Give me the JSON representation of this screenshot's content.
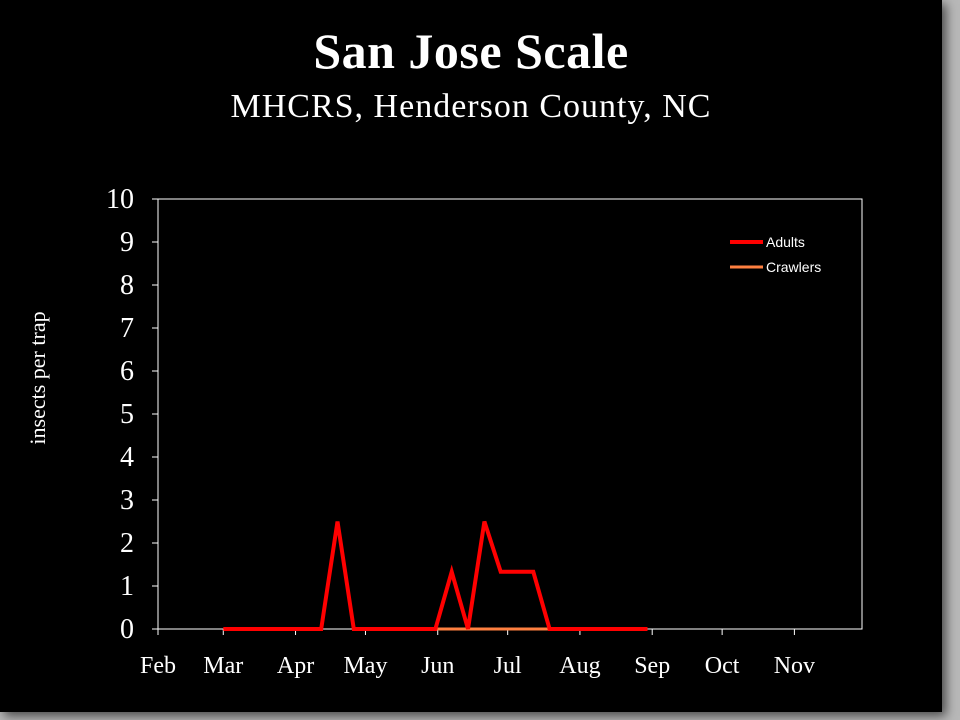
{
  "slide": {
    "title": "San Jose Scale",
    "subtitle": "MHCRS, Henderson County, NC"
  },
  "chart_data": {
    "type": "line",
    "title": "San Jose Scale",
    "subtitle": "MHCRS, Henderson County, NC",
    "xlabel": "",
    "ylabel": "insects per trap",
    "ylim": [
      0,
      10
    ],
    "yticks": [
      0,
      1,
      2,
      3,
      4,
      5,
      6,
      7,
      8,
      9,
      10
    ],
    "xticks": [
      "Feb",
      "Mar",
      "Apr",
      "May",
      "Jun",
      "Jul",
      "Aug",
      "Sep",
      "Oct",
      "Nov"
    ],
    "grid": false,
    "legend_position": "top-right",
    "colors": {
      "background": "#000000",
      "axis": "#ffffff",
      "adults": "#ff0000",
      "crawlers": "#ff8040"
    },
    "series": [
      {
        "name": "Adults",
        "color": "#ff0000",
        "points": [
          [
            "Mar 1",
            0
          ],
          [
            "Mar 15",
            0
          ],
          [
            "Mar 29",
            0
          ],
          [
            "Apr 12",
            0
          ],
          [
            "Apr 19",
            2.5
          ],
          [
            "Apr 26",
            0
          ],
          [
            "May 10",
            0
          ],
          [
            "May 24",
            0
          ],
          [
            "May 31",
            0
          ],
          [
            "Jun 7",
            1.33
          ],
          [
            "Jun 14",
            0
          ],
          [
            "Jun 21",
            2.5
          ],
          [
            "Jun 28",
            1.33
          ],
          [
            "Jul 5",
            1.33
          ],
          [
            "Jul 12",
            1.33
          ],
          [
            "Jul 19",
            0
          ],
          [
            "Aug 2",
            0
          ],
          [
            "Aug 16",
            0
          ],
          [
            "Aug 30",
            0
          ]
        ]
      },
      {
        "name": "Crawlers",
        "color": "#ff8040",
        "points": [
          [
            "Apr 26",
            0
          ],
          [
            "May 10",
            0
          ],
          [
            "May 24",
            0
          ],
          [
            "Jun 7",
            0
          ],
          [
            "Jun 21",
            0
          ],
          [
            "Jul 5",
            0
          ],
          [
            "Jul 19",
            0
          ],
          [
            "Aug 2",
            0
          ],
          [
            "Aug 16",
            0
          ],
          [
            "Aug 30",
            0
          ]
        ]
      }
    ]
  }
}
